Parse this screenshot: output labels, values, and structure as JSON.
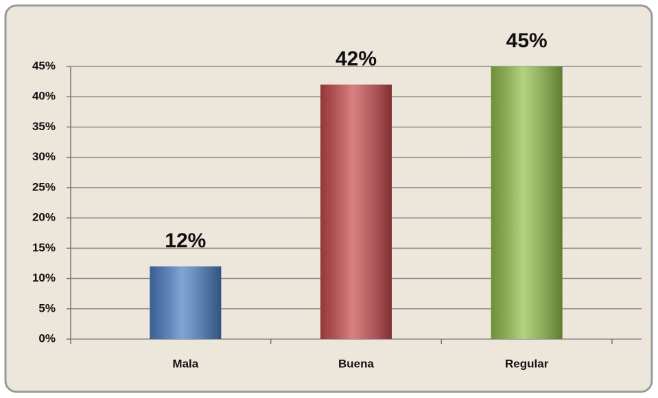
{
  "chart_data": {
    "type": "bar",
    "categories": [
      "Mala",
      "Buena",
      "Regular"
    ],
    "values": [
      12,
      42,
      45
    ],
    "value_labels": [
      "12%",
      "42%",
      "45%"
    ],
    "colors": [
      "#4a7fc4",
      "#c9494b",
      "#92c04a"
    ],
    "ylim": [
      0,
      45
    ],
    "yticks": [
      {
        "value": 0,
        "label": "0%"
      },
      {
        "value": 5,
        "label": "5%"
      },
      {
        "value": 10,
        "label": "10%"
      },
      {
        "value": 15,
        "label": "15%"
      },
      {
        "value": 20,
        "label": "20%"
      },
      {
        "value": 25,
        "label": "25%"
      },
      {
        "value": 30,
        "label": "30%"
      },
      {
        "value": 35,
        "label": "35%"
      },
      {
        "value": 40,
        "label": "40%"
      },
      {
        "value": 45,
        "label": "45%"
      }
    ],
    "grid": true
  }
}
